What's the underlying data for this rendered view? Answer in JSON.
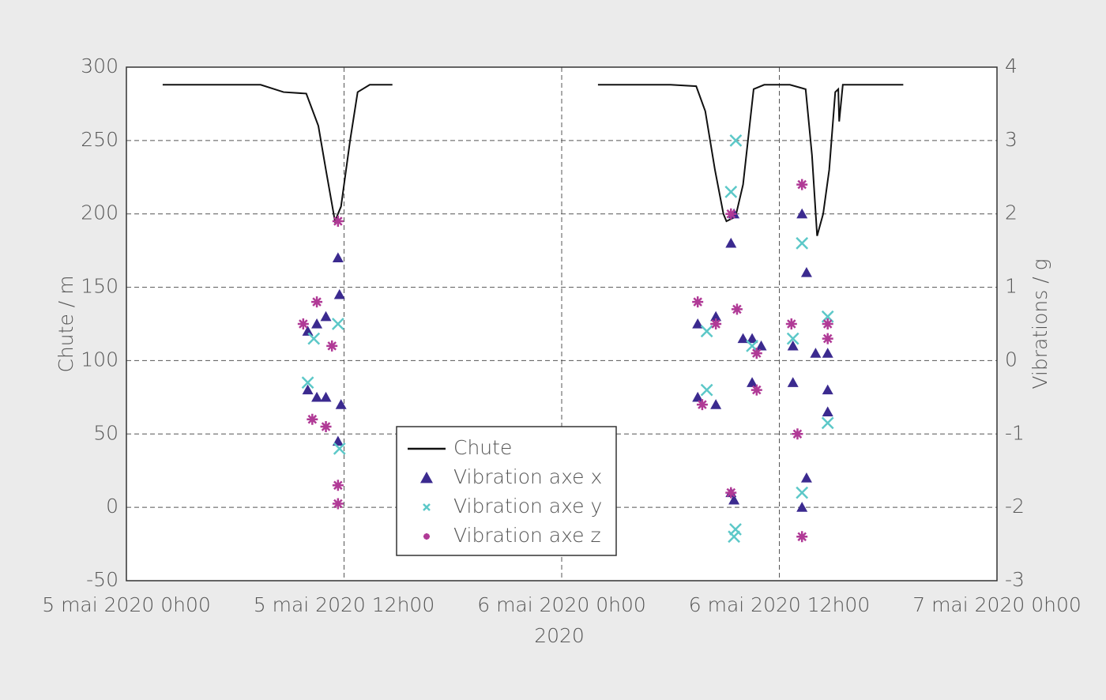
{
  "chart_data": {
    "type": "line",
    "y_label": "Chute / m",
    "y2_label": "Vibrations / g",
    "x_label": "2020",
    "ylim": [
      -50,
      300
    ],
    "yticks": [
      -50,
      0,
      50,
      100,
      150,
      200,
      250,
      300
    ],
    "y2lim": [
      -3,
      4
    ],
    "y2ticks": [
      -3,
      -2,
      -1,
      0,
      1,
      2,
      3,
      4
    ],
    "xlim": [
      "2020-05-05T00:00",
      "2020-05-07T00:00"
    ],
    "xticks": [
      {
        "value": "2020-05-05T00:00",
        "label": "5 mai 2020 0h00"
      },
      {
        "value": "2020-05-05T12:00",
        "label": "5 mai 2020 12h00"
      },
      {
        "value": "2020-05-06T00:00",
        "label": "6 mai 2020 0h00"
      },
      {
        "value": "2020-05-06T12:00",
        "label": "6 mai 2020 12h00"
      },
      {
        "value": "2020-05-07T00:00",
        "label": "7 mai 2020 0h00"
      }
    ],
    "grid": true,
    "legend": "lower center",
    "series": [
      {
        "name": "Chute",
        "type": "line",
        "color": "#111111",
        "axis": "y",
        "x": [
          "2020-05-05T02:00",
          "2020-05-05T07:24",
          "2020-05-05T08:40",
          "2020-05-05T09:55",
          "2020-05-05T10:35",
          "2020-05-05T11:00",
          "2020-05-05T11:30",
          "2020-05-05T11:50",
          "2020-05-05T12:20",
          "2020-05-05T12:45",
          "2020-05-05T13:25",
          "2020-05-05T14:40",
          null,
          "2020-05-06T02:00",
          "2020-05-06T06:00",
          "2020-05-06T07:25",
          "2020-05-06T07:55",
          "2020-05-06T08:27",
          "2020-05-06T08:55",
          "2020-05-06T09:05",
          "2020-05-06T09:35",
          "2020-05-06T10:00",
          "2020-05-06T10:35",
          "2020-05-06T11:10",
          "2020-05-06T12:35",
          "2020-05-06T13:27",
          "2020-05-06T13:48",
          "2020-05-06T14:05",
          "2020-05-06T14:25",
          "2020-05-06T14:45",
          "2020-05-06T15:05",
          "2020-05-06T15:15",
          "2020-05-06T15:18",
          "2020-05-06T15:30",
          "2020-05-06T18:50"
        ],
        "values": [
          288,
          288,
          283,
          282,
          260,
          230,
          195,
          205,
          250,
          283,
          288,
          288,
          null,
          288,
          288,
          287,
          270,
          230,
          200,
          195,
          198,
          220,
          285,
          288,
          288,
          285,
          240,
          185,
          200,
          230,
          283,
          285,
          263,
          288,
          288
        ]
      },
      {
        "name": "Vibration axe x",
        "type": "scatter",
        "marker": "triangle",
        "color": "#3b2a8f",
        "axis": "y2",
        "x": [
          "2020-05-05T10:00",
          "2020-05-05T10:00",
          "2020-05-05T10:30",
          "2020-05-05T10:30",
          "2020-05-05T11:00",
          "2020-05-05T11:00",
          "2020-05-05T11:40",
          "2020-05-05T11:40",
          "2020-05-05T11:45",
          "2020-05-05T11:50",
          "2020-05-06T07:30",
          "2020-05-06T07:30",
          "2020-05-06T08:30",
          "2020-05-06T08:30",
          "2020-05-06T09:20",
          "2020-05-06T09:20",
          "2020-05-06T09:30",
          "2020-05-06T09:30",
          "2020-05-06T10:00",
          "2020-05-06T10:30",
          "2020-05-06T10:30",
          "2020-05-06T11:00",
          "2020-05-06T12:45",
          "2020-05-06T12:45",
          "2020-05-06T13:15",
          "2020-05-06T13:15",
          "2020-05-06T13:30",
          "2020-05-06T13:30",
          "2020-05-06T14:00",
          "2020-05-06T14:40",
          "2020-05-06T14:40",
          "2020-05-06T14:40"
        ],
        "values": [
          0.4,
          -0.4,
          0.5,
          -0.5,
          0.6,
          -0.5,
          1.4,
          -1.1,
          0.9,
          -0.6,
          0.5,
          -0.5,
          0.6,
          -0.6,
          1.6,
          -1.8,
          2.0,
          -1.9,
          0.3,
          0.3,
          -0.3,
          0.2,
          0.2,
          -0.3,
          2.0,
          -2.0,
          1.2,
          -1.6,
          0.1,
          0.1,
          -0.4,
          -0.7
        ]
      },
      {
        "name": "Vibration axe y",
        "type": "scatter",
        "marker": "cross",
        "color": "#5cc8c8",
        "axis": "y2",
        "x": [
          "2020-05-05T10:00",
          "2020-05-05T10:20",
          "2020-05-05T11:40",
          "2020-05-05T11:45",
          "2020-05-06T08:00",
          "2020-05-06T08:00",
          "2020-05-06T09:20",
          "2020-05-06T09:30",
          "2020-05-06T09:35",
          "2020-05-06T09:36",
          "2020-05-06T10:30",
          "2020-05-06T12:45",
          "2020-05-06T13:15",
          "2020-05-06T13:15",
          "2020-05-06T14:40",
          "2020-05-06T14:40"
        ],
        "values": [
          -0.3,
          0.3,
          0.5,
          -1.2,
          0.4,
          -0.4,
          2.3,
          -2.4,
          -2.3,
          3.0,
          0.2,
          0.3,
          1.6,
          -1.8,
          0.6,
          -0.85
        ]
      },
      {
        "name": "Vibration axe z",
        "type": "scatter",
        "marker": "star",
        "color": "#b03a96",
        "axis": "y2",
        "x": [
          "2020-05-05T09:45",
          "2020-05-05T10:15",
          "2020-05-05T10:30",
          "2020-05-05T11:00",
          "2020-05-05T11:20",
          "2020-05-05T11:40",
          "2020-05-05T11:40",
          "2020-05-05T11:40",
          "2020-05-06T07:30",
          "2020-05-06T07:45",
          "2020-05-06T08:30",
          "2020-05-06T09:20",
          "2020-05-06T09:20",
          "2020-05-06T09:40",
          "2020-05-06T10:45",
          "2020-05-06T10:45",
          "2020-05-06T12:40",
          "2020-05-06T13:00",
          "2020-05-06T13:15",
          "2020-05-06T13:15",
          "2020-05-06T14:40",
          "2020-05-06T14:40"
        ],
        "values": [
          0.5,
          -0.8,
          0.8,
          -0.9,
          0.2,
          1.9,
          -1.7,
          -1.95,
          0.8,
          -0.6,
          0.5,
          2.0,
          -1.8,
          0.7,
          0.1,
          -0.4,
          0.5,
          -1.0,
          2.4,
          -2.4,
          0.5,
          0.3
        ]
      }
    ]
  }
}
